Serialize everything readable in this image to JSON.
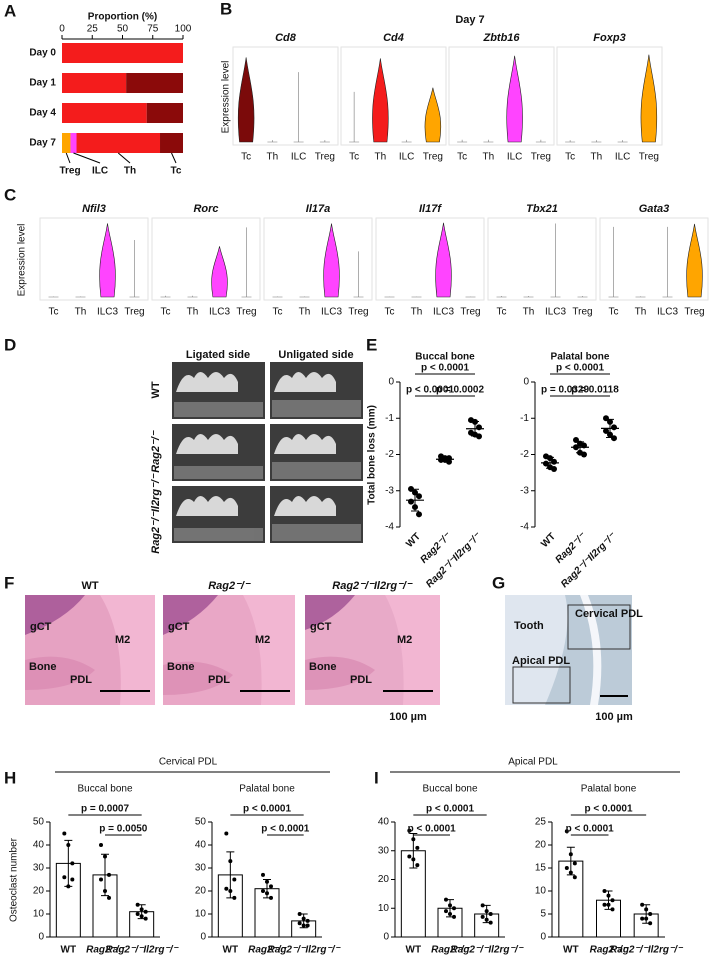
{
  "letters": [
    "A",
    "B",
    "C",
    "D",
    "E",
    "F",
    "G",
    "H",
    "I"
  ],
  "panels": {
    "D": {
      "columns": [
        "Ligated side",
        "Unligated side"
      ],
      "rows": [
        "WT",
        "Rag2⁻/⁻",
        "Rag2⁻/⁻Il2rg⁻/⁻"
      ]
    },
    "F": {
      "images": [
        {
          "title": "WT",
          "labels": [
            "gCT",
            "M2",
            "Bone",
            "PDL"
          ]
        },
        {
          "title": "Rag2⁻/⁻",
          "labels": [
            "gCT",
            "M2",
            "Bone",
            "PDL"
          ]
        },
        {
          "title": "Rag2⁻/⁻Il2rg⁻/⁻",
          "labels": [
            "gCT",
            "M2",
            "Bone",
            "PDL"
          ]
        }
      ],
      "scale": "100 µm"
    },
    "G": {
      "labels": [
        "Tooth",
        "Cervical PDL",
        "Apical PDL"
      ],
      "scale": "100 µm"
    },
    "H": {
      "title": "Cervical PDL"
    },
    "I": {
      "title": "Apical PDL"
    }
  },
  "chart_data": [
    {
      "type": "bar",
      "orientation": "horizontal",
      "stacked": true,
      "x_label": "Proportion (%)",
      "categories": [
        "Day 0",
        "Day 1",
        "Day 4",
        "Day 7"
      ],
      "series": [
        {
          "name": "Treg",
          "color": "#ffa500",
          "values": [
            0,
            0,
            0,
            7
          ]
        },
        {
          "name": "ILC",
          "color": "#ff44ff",
          "values": [
            0,
            0,
            0,
            5
          ]
        },
        {
          "name": "Th",
          "color": "#f41c1c",
          "values": [
            100,
            53,
            70,
            69
          ]
        },
        {
          "name": "Tc",
          "color": "#8b0a0a",
          "values": [
            0,
            47,
            30,
            19
          ]
        }
      ],
      "xlim": [
        0,
        100
      ],
      "xticks": [
        0,
        25,
        50,
        75,
        100
      ]
    },
    {
      "type": "violin",
      "title": "Day 7",
      "y_label": "Expression level",
      "categories": [
        "Tc",
        "Th",
        "ILC",
        "Treg"
      ],
      "genes": [
        {
          "name": "Cd8",
          "ylim": [
            0,
            2.5
          ],
          "values": [
            2.3,
            0.05,
            1.9,
            0.05
          ],
          "colors": [
            "#7b0a0a",
            null,
            null,
            null
          ]
        },
        {
          "name": "Cd4",
          "ylim": [
            0,
            2.2
          ],
          "values": [
            1.2,
            2.0,
            0.05,
            1.3
          ],
          "colors": [
            null,
            "#f41c1c",
            null,
            "#ffa500"
          ]
        },
        {
          "name": "Zbtb16",
          "ylim": [
            0,
            0.8
          ],
          "values": [
            0.02,
            0.02,
            0.75,
            0.02
          ],
          "colors": [
            null,
            null,
            "#ff44ff",
            null
          ]
        },
        {
          "name": "Foxp3",
          "ylim": [
            0,
            1
          ],
          "values": [
            0.02,
            0.02,
            0.02,
            0.95
          ],
          "colors": [
            null,
            null,
            null,
            "#ffa500"
          ]
        }
      ]
    },
    {
      "type": "violin",
      "y_label": "Expression level",
      "categories": [
        "Tc",
        "Th",
        "ILC3",
        "Treg"
      ],
      "genes": [
        {
          "name": "Nfil3",
          "ylim": [
            0,
            3.2
          ],
          "values": [
            0.02,
            0.02,
            3.1,
            2.4
          ],
          "colors": [
            null,
            null,
            "#ff44ff",
            null
          ]
        },
        {
          "name": "Rorc",
          "ylim": [
            0,
            1.2
          ],
          "values": [
            0.02,
            0.02,
            0.8,
            1.1
          ],
          "colors": [
            null,
            null,
            "#ff44ff",
            null
          ]
        },
        {
          "name": "Il17a",
          "ylim": [
            0,
            3
          ],
          "values": [
            0.02,
            0.02,
            2.9,
            1.8
          ],
          "colors": [
            null,
            null,
            "#ff44ff",
            null
          ]
        },
        {
          "name": "Il17f",
          "ylim": [
            0,
            4.2
          ],
          "values": [
            0.02,
            0.02,
            4.1,
            0.02
          ],
          "colors": [
            null,
            null,
            "#ff44ff",
            null
          ]
        },
        {
          "name": "Tbx21",
          "ylim": [
            0,
            1.5
          ],
          "values": [
            0.02,
            0.02,
            1.45,
            0.02
          ],
          "colors": [
            null,
            null,
            null,
            null
          ]
        },
        {
          "name": "Gata3",
          "ylim": [
            0,
            2.6
          ],
          "values": [
            2.4,
            0.02,
            2.4,
            2.5
          ],
          "colors": [
            null,
            null,
            null,
            "#ffa500"
          ]
        }
      ]
    },
    {
      "type": "strip",
      "title": "Buccal bone",
      "y_label": "Total bone loss (mm)",
      "categories": [
        "WT",
        "Rag2⁻/⁻",
        "Rag2⁻/⁻Il2rg⁻/⁻"
      ],
      "points": [
        [
          -2.95,
          -3.05,
          -3.15,
          -3.3,
          -3.45,
          -3.65
        ],
        [
          -2.05,
          -2.1,
          -2.1,
          -2.15,
          -2.15,
          -2.2
        ],
        [
          -1.05,
          -1.1,
          -1.25,
          -1.4,
          -1.45,
          -1.5
        ]
      ],
      "means": [
        -3.26,
        -2.13,
        -1.29
      ],
      "sds": [
        0.3,
        0.06,
        0.2
      ],
      "ylim": [
        -4,
        0
      ],
      "yticks": [
        0,
        -1,
        -2,
        -3,
        -4
      ],
      "comparisons": [
        {
          "label": "p < 0.0001",
          "pair": [
            0,
            2
          ]
        },
        {
          "label": "p < 0.0001",
          "pair": [
            0,
            1
          ]
        },
        {
          "label": "p = 0.0002",
          "pair": [
            1,
            2
          ]
        }
      ]
    },
    {
      "type": "strip",
      "title": "Palatal bone",
      "categories": [
        "WT",
        "Rag2⁻/⁻",
        "Rag2⁻/⁻Il2rg⁻/⁻"
      ],
      "points": [
        [
          -2.05,
          -2.1,
          -2.2,
          -2.25,
          -2.35,
          -2.4
        ],
        [
          -1.6,
          -1.7,
          -1.75,
          -1.8,
          -1.95,
          -2.0
        ],
        [
          -1.0,
          -1.1,
          -1.25,
          -1.35,
          -1.45,
          -1.55
        ]
      ],
      "means": [
        -2.23,
        -1.8,
        -1.28
      ],
      "sds": [
        0.15,
        0.15,
        0.25
      ],
      "ylim": [
        -4,
        0
      ],
      "yticks": [
        0,
        -1,
        -2,
        -3,
        -4
      ],
      "comparisons": [
        {
          "label": "p < 0.0001",
          "pair": [
            0,
            2
          ]
        },
        {
          "label": "p = 0.0329",
          "pair": [
            0,
            1
          ]
        },
        {
          "label": "p = 0.0118",
          "pair": [
            1,
            2
          ]
        }
      ]
    },
    {
      "type": "bar",
      "title": "Buccal bone",
      "y_label": "Osteoclast number",
      "categories": [
        "WT",
        "Rag2⁻/⁻",
        "Rag2⁻/⁻Il2rg⁻/⁻"
      ],
      "points": [
        [
          45,
          40,
          32,
          26,
          22,
          25
        ],
        [
          40,
          35,
          27,
          25,
          20,
          17
        ],
        [
          14,
          12,
          11,
          10,
          9,
          8
        ]
      ],
      "means": [
        32,
        27,
        11
      ],
      "sds": [
        10,
        9,
        3
      ],
      "ylim": [
        0,
        50
      ],
      "yticks": [
        0,
        10,
        20,
        30,
        40,
        50
      ],
      "comparisons": [
        {
          "label": "p = 0.0007",
          "pair": [
            0,
            2
          ]
        },
        {
          "label": "p = 0.0050",
          "pair": [
            1,
            2
          ]
        }
      ]
    },
    {
      "type": "bar",
      "title": "Palatal bone",
      "categories": [
        "WT",
        "Rag2⁻/⁻",
        "Rag2⁻/⁻Il2rg⁻/⁻"
      ],
      "points": [
        [
          45,
          33,
          25,
          21,
          20,
          17
        ],
        [
          27,
          24,
          22,
          20,
          19,
          17
        ],
        [
          10,
          8,
          7,
          6,
          5,
          5
        ]
      ],
      "means": [
        27,
        21,
        7
      ],
      "sds": [
        10,
        4,
        3
      ],
      "ylim": [
        0,
        50
      ],
      "yticks": [
        0,
        10,
        20,
        30,
        40,
        50
      ],
      "comparisons": [
        {
          "label": "p < 0.0001",
          "pair": [
            0,
            2
          ]
        },
        {
          "label": "p < 0.0001",
          "pair": [
            1,
            2
          ]
        }
      ]
    },
    {
      "type": "bar",
      "title": "Buccal bone",
      "categories": [
        "WT",
        "Rag2⁻/⁻",
        "Rag2⁻/⁻Il2rg⁻/⁻"
      ],
      "points": [
        [
          37,
          34,
          31,
          28,
          27,
          25
        ],
        [
          13,
          11,
          10,
          9,
          8,
          7
        ],
        [
          11,
          9,
          8,
          7,
          6,
          5
        ]
      ],
      "means": [
        30,
        10,
        8
      ],
      "sds": [
        6,
        3,
        3
      ],
      "ylim": [
        0,
        40
      ],
      "yticks": [
        0,
        10,
        20,
        30,
        40
      ],
      "comparisons": [
        {
          "label": "p < 0.0001",
          "pair": [
            0,
            1
          ]
        },
        {
          "label": "p < 0.0001",
          "pair": [
            0,
            2
          ]
        }
      ]
    },
    {
      "type": "bar",
      "title": "Palatal bone",
      "categories": [
        "WT",
        "Rag2⁻/⁻",
        "Rag2⁻/⁻Il2rg⁻/⁻"
      ],
      "points": [
        [
          23,
          18,
          16,
          15,
          14,
          13
        ],
        [
          10,
          9,
          8,
          7,
          7,
          6
        ],
        [
          7,
          6,
          5,
          4,
          4,
          3
        ]
      ],
      "means": [
        16.5,
        8,
        5
      ],
      "sds": [
        3,
        2,
        2
      ],
      "ylim": [
        0,
        25
      ],
      "yticks": [
        0,
        5,
        10,
        15,
        20,
        25
      ],
      "comparisons": [
        {
          "label": "p < 0.0001",
          "pair": [
            0,
            1
          ]
        },
        {
          "label": "p < 0.0001",
          "pair": [
            0,
            2
          ]
        }
      ]
    }
  ]
}
